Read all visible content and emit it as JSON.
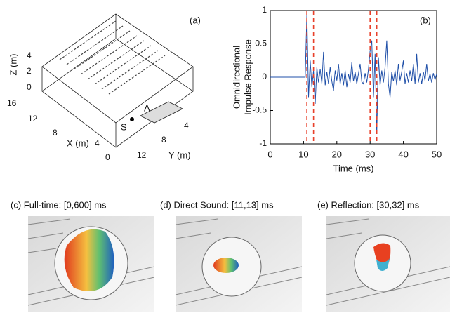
{
  "panel_a": {
    "label": "(a)",
    "z_label": "Z (m)",
    "z_ticks": [
      "4",
      "2",
      "0"
    ],
    "x_label": "X (m)",
    "x_ticks": [
      "16",
      "12",
      "8",
      "4",
      "0"
    ],
    "y_label": "Y (m)",
    "y_ticks": [
      "12",
      "8",
      "4"
    ],
    "source": "S",
    "receiver": "A"
  },
  "chart_data": {
    "type": "line",
    "label": "(b)",
    "xlabel": "Time (ms)",
    "ylabel": [
      "Omnidirectional",
      "Impulse Response"
    ],
    "x": [
      0,
      0.5,
      1,
      1.5,
      2,
      2.5,
      3,
      3.5,
      4,
      4.5,
      5,
      5.5,
      6,
      6.5,
      7,
      7.5,
      8,
      8.5,
      9,
      9.5,
      10,
      10.5,
      11,
      11.5,
      12,
      12.5,
      13,
      13.5,
      14,
      14.5,
      15,
      15.5,
      16,
      16.5,
      17,
      17.5,
      18,
      18.5,
      19,
      19.5,
      20,
      20.5,
      21,
      21.5,
      22,
      22.5,
      23,
      23.5,
      24,
      24.5,
      25,
      25.5,
      26,
      26.5,
      27,
      27.5,
      28,
      28.5,
      29,
      29.5,
      30,
      30.5,
      31,
      31.5,
      32,
      32.5,
      33,
      33.5,
      34,
      34.5,
      35,
      35.5,
      36,
      36.5,
      37,
      37.5,
      38,
      38.5,
      39,
      39.5,
      40,
      40.5,
      41,
      41.5,
      42,
      42.5,
      43,
      43.5,
      44,
      44.5,
      45,
      45.5,
      46,
      46.5,
      47,
      47.5,
      48,
      48.5,
      49,
      49.5,
      50
    ],
    "series": [
      {
        "color": "#1f4fa8",
        "values": [
          0,
          0,
          0,
          0,
          0,
          0,
          0,
          0,
          0,
          0,
          0,
          0,
          0,
          0,
          0,
          0,
          0,
          0,
          0,
          0,
          0,
          0,
          0.95,
          -0.3,
          0.25,
          -0.15,
          0.1,
          -0.4,
          0.15,
          -0.08,
          0.12,
          -0.1,
          0.38,
          -0.12,
          0.08,
          -0.1,
          0.15,
          -0.06,
          -0.2,
          0.1,
          -0.05,
          0.2,
          -0.1,
          0.06,
          -0.12,
          0.1,
          -0.15,
          0.05,
          -0.08,
          0.22,
          -0.06,
          0.08,
          -0.1,
          0.05,
          0.2,
          -0.07,
          -0.1,
          0.06,
          -0.08,
          0.12,
          0.4,
          0.55,
          -0.3,
          0.35,
          -0.85,
          0.3,
          -0.12,
          0.1,
          -0.08,
          0.15,
          0.55,
          -0.1,
          -0.3,
          0.08,
          -0.06,
          0.1,
          -0.12,
          0.2,
          -0.05,
          0.08,
          0.25,
          -0.1,
          0.06,
          -0.08,
          0.1,
          -0.06,
          0.2,
          -0.1,
          0.35,
          -0.08,
          0.06,
          -0.1,
          0.08,
          -0.05,
          0.2,
          -0.06,
          0.05,
          -0.08,
          0.06,
          -0.04,
          0.05
        ]
      }
    ],
    "window_edges": [
      11,
      13,
      30,
      32
    ],
    "window_color": "#e8402a",
    "xlim": [
      0,
      50
    ],
    "xticks": [
      0,
      10,
      20,
      30,
      40,
      50
    ],
    "ylim": [
      -1,
      1
    ],
    "yticks": [
      -1,
      -0.5,
      0,
      0.5,
      1
    ]
  },
  "panels": [
    {
      "caption": "(c) Full-time: [0,600] ms"
    },
    {
      "caption": "(d) Direct Sound: [11,13] ms"
    },
    {
      "caption": "(e) Reflection: [30,32] ms"
    }
  ]
}
